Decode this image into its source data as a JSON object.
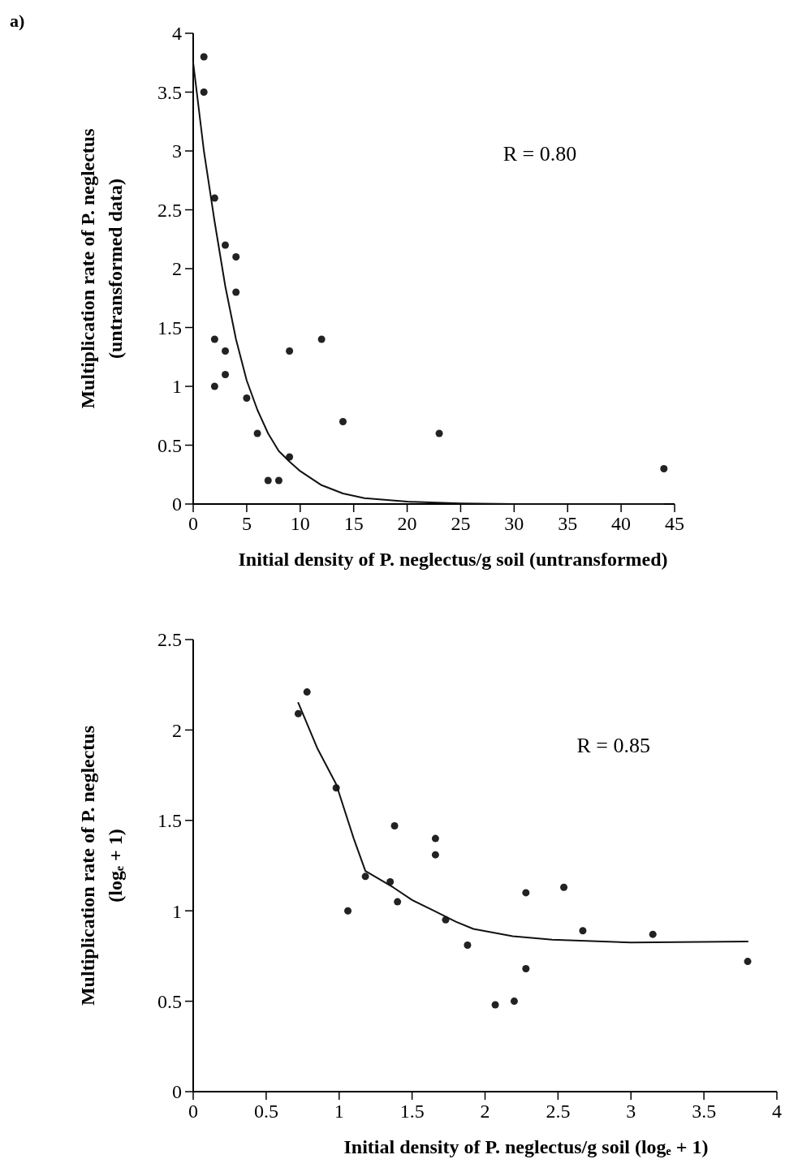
{
  "chart_data": [
    {
      "type": "scatter",
      "xlabel": "Initial density of P. neglectus/g soil (untransformed)",
      "ylabel": "Multiplication rate of P. neglectus\n(untransformed data)",
      "annotations": [
        "a)",
        "R = 0.80"
      ],
      "xlim": [
        0,
        45
      ],
      "xticks": [
        0,
        5,
        10,
        15,
        20,
        25,
        30,
        35,
        40,
        45
      ],
      "ylim": [
        0,
        4
      ],
      "yticks": [
        0,
        0.5,
        1,
        1.5,
        2,
        2.5,
        3,
        3.5,
        4
      ],
      "grid": false,
      "marker": "circle",
      "series": [
        {
          "color": "#222222",
          "x": [
            1,
            1,
            2,
            3,
            4,
            4,
            2,
            3,
            9,
            12,
            3,
            2,
            5,
            14,
            6,
            23,
            9,
            7,
            8,
            44
          ],
          "values": [
            3.8,
            3.5,
            2.6,
            2.2,
            2.1,
            1.8,
            1.4,
            1.3,
            1.3,
            1.4,
            1.1,
            1.0,
            0.9,
            0.7,
            0.6,
            0.6,
            0.4,
            0.2,
            0.2,
            0.3
          ]
        },
        {
          "type": "line",
          "color": "#111111",
          "line_style": "solid",
          "marker": "none",
          "x": [
            0,
            1,
            2,
            3,
            4,
            5,
            6,
            7,
            8,
            9,
            10,
            12,
            14,
            16,
            20,
            25,
            30,
            44
          ],
          "values": [
            3.75,
            3.0,
            2.4,
            1.85,
            1.4,
            1.05,
            0.8,
            0.6,
            0.45,
            0.36,
            0.28,
            0.16,
            0.09,
            0.05,
            0.02,
            0.005,
            0,
            0
          ]
        }
      ]
    },
    {
      "type": "scatter",
      "xlabel": "Initial density of P. neglectus/g soil (logₑ + 1)",
      "ylabel": "Multiplication rate of P. neglectus\n(logₑ + 1)",
      "annotations": [
        "R = 0.85"
      ],
      "xlim": [
        0,
        4
      ],
      "xticks": [
        0,
        0.5,
        1,
        1.5,
        2,
        2.5,
        3,
        3.5,
        4
      ],
      "ylim": [
        0,
        2.5
      ],
      "yticks": [
        0,
        0.5,
        1,
        1.5,
        2,
        2.5
      ],
      "grid": false,
      "marker": "circle",
      "series": [
        {
          "color": "#222222",
          "x": [
            0.72,
            0.78,
            0.98,
            1.06,
            1.18,
            1.35,
            1.38,
            1.4,
            1.66,
            1.66,
            1.73,
            1.88,
            2.07,
            2.2,
            2.28,
            2.28,
            2.54,
            2.67,
            3.15,
            3.8
          ],
          "values": [
            2.09,
            2.21,
            1.68,
            1.0,
            1.19,
            1.16,
            1.47,
            1.05,
            1.4,
            1.31,
            0.95,
            0.81,
            0.48,
            0.5,
            1.1,
            0.68,
            1.13,
            0.89,
            0.87,
            0.72
          ]
        },
        {
          "type": "line",
          "color": "#111111",
          "line_style": "solid",
          "marker": "none",
          "x": [
            0.72,
            0.85,
            0.98,
            1.1,
            1.18,
            1.37,
            1.5,
            1.65,
            1.8,
            1.92,
            2.19,
            2.46,
            3.0,
            3.8
          ],
          "values": [
            2.15,
            1.9,
            1.7,
            1.4,
            1.22,
            1.13,
            1.06,
            1.0,
            0.94,
            0.9,
            0.86,
            0.84,
            0.825,
            0.83
          ]
        }
      ]
    }
  ]
}
